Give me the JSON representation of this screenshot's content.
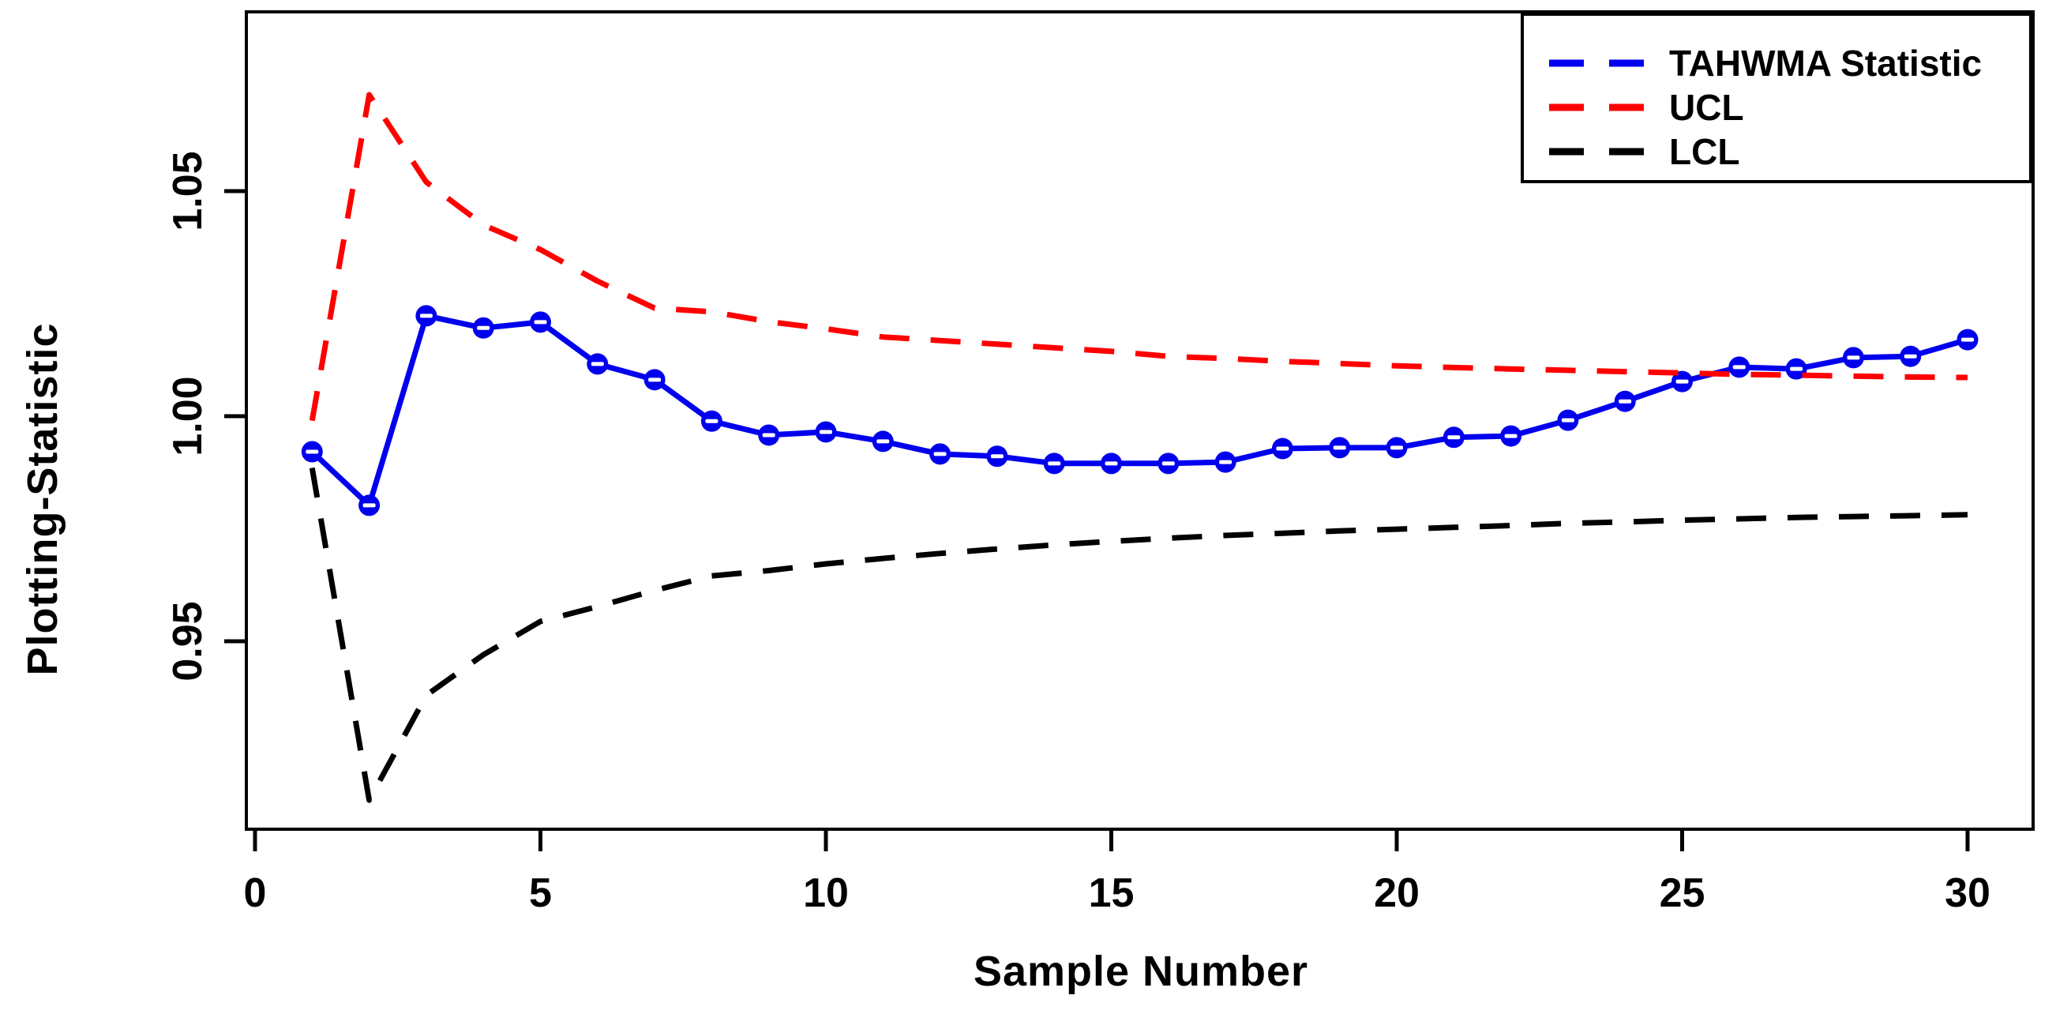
{
  "figure": {
    "background": "#ffffff",
    "axis_color": "#000000"
  },
  "chart_data": {
    "type": "line",
    "title": "",
    "xlabel": "Sample Number",
    "ylabel": "Plotting-Statistic",
    "x_ticks": [
      0,
      5,
      10,
      15,
      20,
      25,
      30
    ],
    "y_ticks": [
      0.95,
      1.0,
      1.05
    ],
    "xlim": [
      0,
      31
    ],
    "ylim": [
      0.908,
      1.09
    ],
    "grid": "off",
    "legend_position": "top-right",
    "x": [
      1,
      2,
      3,
      4,
      5,
      6,
      7,
      8,
      9,
      10,
      11,
      12,
      13,
      14,
      15,
      16,
      17,
      18,
      19,
      20,
      21,
      22,
      23,
      24,
      25,
      26,
      27,
      28,
      29,
      30
    ],
    "series": [
      {
        "name": "TAHWMA Statistic",
        "color": "#0000ee",
        "style": "solid-markers",
        "values": [
          0.9921,
          0.9802,
          1.0223,
          1.0196,
          1.0209,
          1.0116,
          1.0081,
          0.9989,
          0.9958,
          0.9965,
          0.9944,
          0.9916,
          0.9911,
          0.9895,
          0.9895,
          0.9895,
          0.9898,
          0.9928,
          0.993,
          0.993,
          0.9953,
          0.9956,
          0.9991,
          1.0033,
          1.0077,
          1.0109,
          1.0105,
          1.013,
          1.0133,
          1.017
        ]
      },
      {
        "name": "UCL",
        "color": "#ff0000",
        "style": "dashed",
        "values": [
          0.999,
          1.0714,
          1.052,
          1.0425,
          1.037,
          1.03,
          1.024,
          1.0232,
          1.021,
          1.0194,
          1.0176,
          1.0168,
          1.016,
          1.0152,
          1.0144,
          1.0133,
          1.0128,
          1.0122,
          1.0117,
          1.0112,
          1.0108,
          1.0105,
          1.0102,
          1.0099,
          1.0096,
          1.0093,
          1.0091,
          1.0089,
          1.0087,
          1.0086
        ]
      },
      {
        "name": "LCL",
        "color": "#000000",
        "style": "dashed",
        "values": [
          0.9885,
          0.9147,
          0.938,
          0.947,
          0.9544,
          0.9577,
          0.9613,
          0.9645,
          0.9657,
          0.9672,
          0.9684,
          0.9695,
          0.9705,
          0.9714,
          0.9722,
          0.9729,
          0.9735,
          0.974,
          0.9745,
          0.9749,
          0.9753,
          0.9757,
          0.9762,
          0.9765,
          0.9769,
          0.9772,
          0.9775,
          0.9777,
          0.9779,
          0.9781
        ]
      }
    ]
  }
}
